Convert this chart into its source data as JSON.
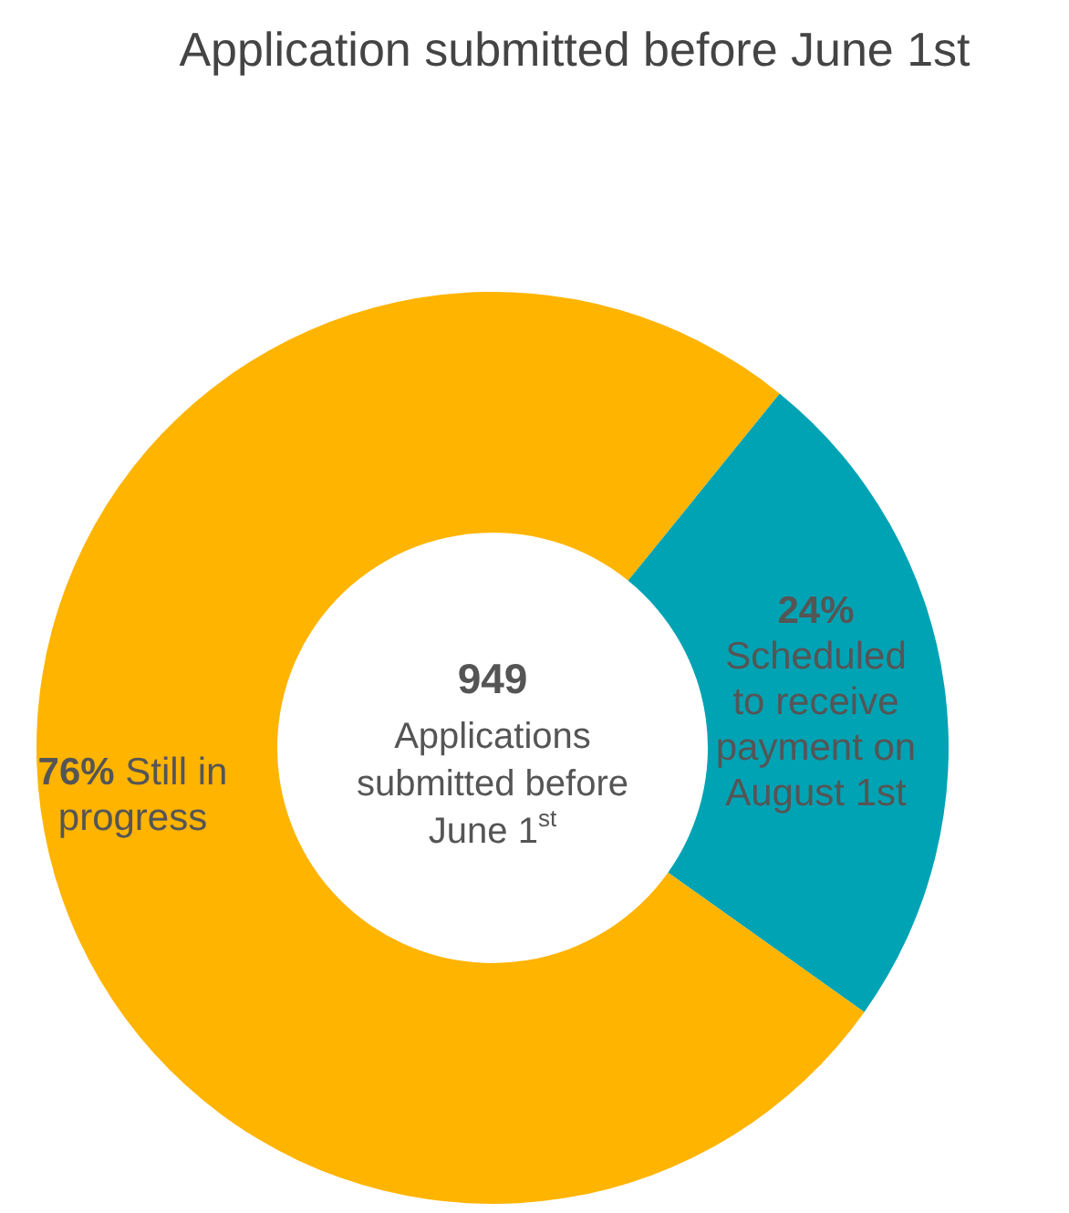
{
  "chart_data": {
    "type": "donut",
    "title": "Application submitted before June 1st",
    "categories": [
      "Scheduled to receive payment on August 1st",
      "Still in progress"
    ],
    "values": [
      24,
      76
    ],
    "colors": [
      "#00a3b4",
      "#ffb400"
    ],
    "value_labels": [
      "24%",
      "76%"
    ],
    "annotations": [
      "949",
      "Applications submitted before June 1$^{st}$"
    ]
  }
}
